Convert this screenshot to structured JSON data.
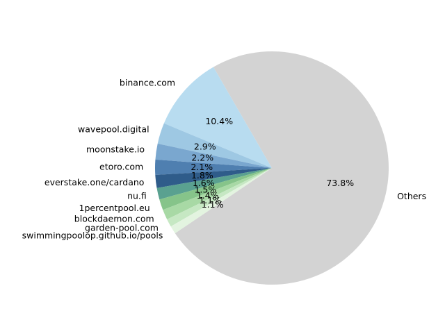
{
  "chart_data": {
    "type": "pie",
    "title": "",
    "start_angle_deg": 120,
    "direction": "counterclockwise",
    "slices": [
      {
        "label": "binance.com",
        "value": 10.4,
        "pct_label": "10.4%",
        "color": "#b8dcf0"
      },
      {
        "label": "wavepool.digital",
        "value": 2.9,
        "pct_label": "2.9%",
        "color": "#9ec8e3"
      },
      {
        "label": "moonstake.io",
        "value": 2.2,
        "pct_label": "2.2%",
        "color": "#7aa7cf"
      },
      {
        "label": "etoro.com",
        "value": 2.1,
        "pct_label": "2.1%",
        "color": "#4f7fb0"
      },
      {
        "label": "everstake.one/cardano",
        "value": 1.8,
        "pct_label": "1.8%",
        "color": "#2f5c8a"
      },
      {
        "label": "nu.fi",
        "value": 1.6,
        "pct_label": "1.6%",
        "color": "#5aa190"
      },
      {
        "label": "1percentpool.eu",
        "value": 1.5,
        "pct_label": "1.5%",
        "color": "#86c48a"
      },
      {
        "label": "blockdaemon.com",
        "value": 1.4,
        "pct_label": "1.4%",
        "color": "#a8d9a5"
      },
      {
        "label": "garden-pool.com",
        "value": 1.1,
        "pct_label": "1.1%",
        "color": "#c6e8c3"
      },
      {
        "label": "swimmingpoolop.github.io/pools",
        "value": 1.1,
        "pct_label": "1.1%",
        "color": "#e3f4e0"
      },
      {
        "label": "Others",
        "value": 73.8,
        "pct_label": "73.8%",
        "color": "#d3d3d3"
      }
    ]
  }
}
